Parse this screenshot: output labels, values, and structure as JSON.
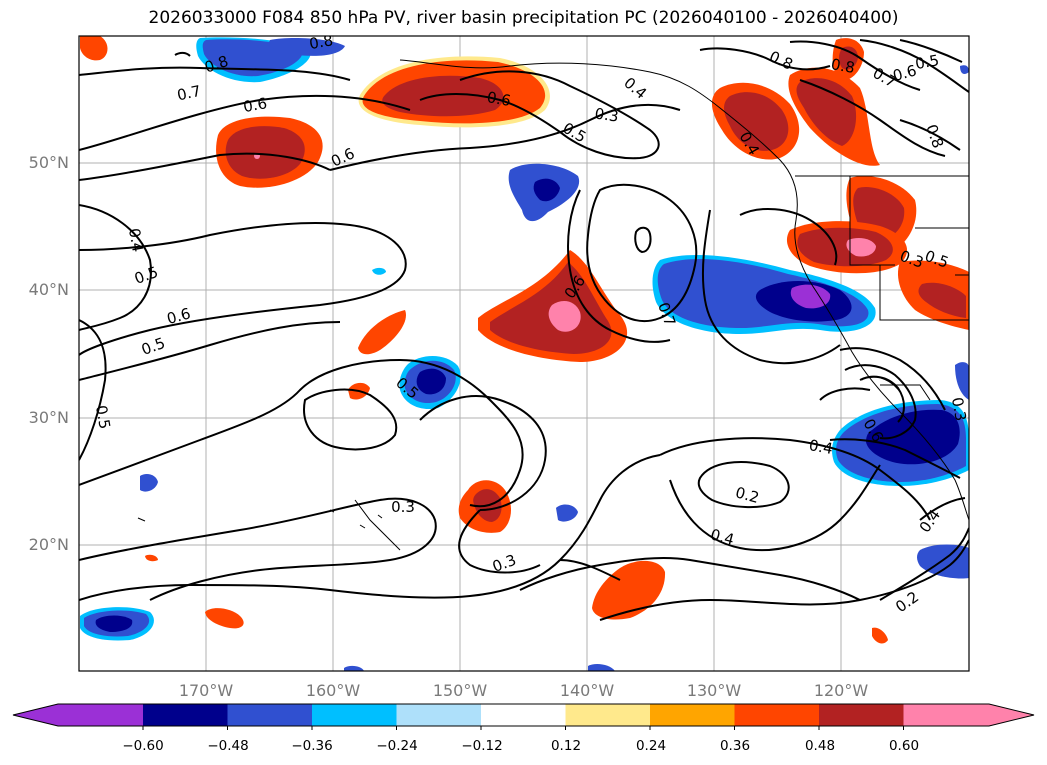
{
  "title": "2026033000 F084 850 hPa PV, river basin precipitation PC (2026040100 - 2026040400)",
  "map": {
    "lat_labels": [
      "50°N",
      "40°N",
      "30°N",
      "20°N"
    ],
    "lon_labels": [
      "170°W",
      "160°W",
      "150°W",
      "140°W",
      "130°W",
      "120°W"
    ],
    "contour_labels": [
      "0.8",
      "0.8",
      "0.7",
      "0.6",
      "0.6",
      "0.6",
      "0.5",
      "0.3",
      "0.4",
      "0.6",
      "0.7",
      "0.5",
      "0.4",
      "0.5",
      "0.6",
      "0.5",
      "0.5",
      "0.5",
      "0.3",
      "0.3",
      "0.4",
      "0.2",
      "0.4",
      "0.2",
      "0.8",
      "0.8",
      "0.7",
      "0.6",
      "0.5",
      "0.8",
      "0.3",
      "0.4",
      "0.6",
      "0.3",
      "0.4"
    ]
  },
  "colorbar": {
    "ticks": [
      "−0.60",
      "−0.48",
      "−0.36",
      "−0.24",
      "−0.12",
      "0.12",
      "0.24",
      "0.36",
      "0.48",
      "0.60"
    ],
    "colors": [
      "#9b30d6",
      "#00008c",
      "#3050d0",
      "#00bfff",
      "#aee0fa",
      "#ffffff",
      "#ffe98c",
      "#ffa500",
      "#ff4500",
      "#b22222",
      "#ff82ab",
      "#ff82ab"
    ]
  }
}
